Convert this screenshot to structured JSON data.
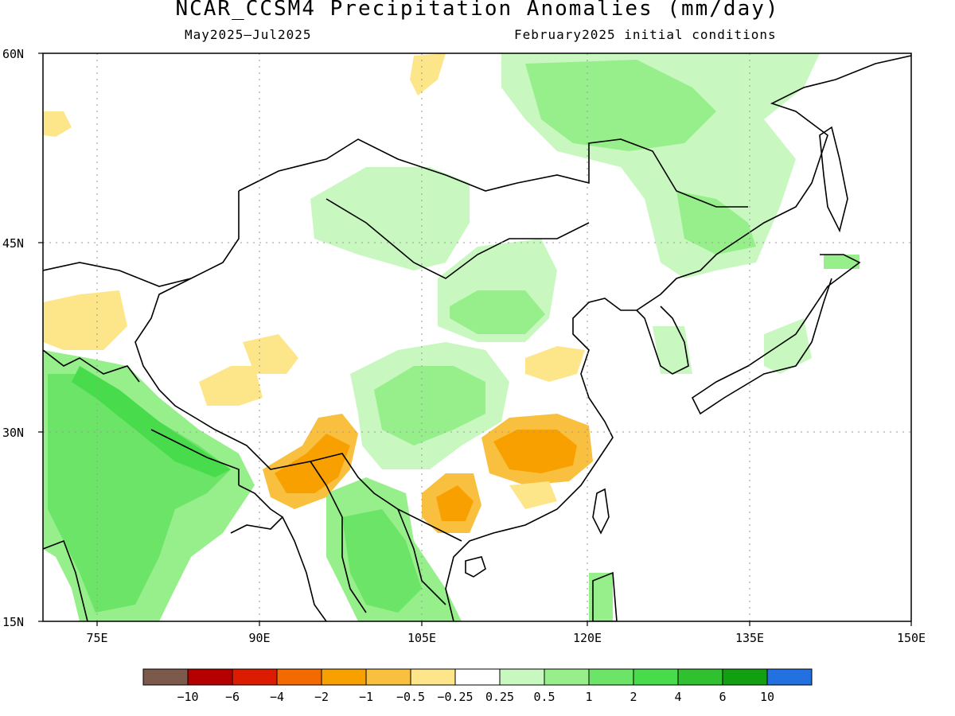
{
  "title": "NCAR_CCSM4 Precipitation Anomalies (mm/day)",
  "period": "May2025–Jul2025",
  "initial_conditions": "February2025 initial conditions",
  "axes": {
    "lat_ticks": [
      "60N",
      "45N",
      "30N",
      "15N"
    ],
    "lon_ticks": [
      "75E",
      "90E",
      "105E",
      "120E",
      "135E",
      "150E"
    ]
  },
  "colorbar": {
    "colors": [
      "#7b5a4c",
      "#b50000",
      "#dc1c00",
      "#f36a00",
      "#f7a000",
      "#f9c040",
      "#fde68a",
      "#ffffff",
      "#c8f8c0",
      "#96ef8a",
      "#6be468",
      "#48dc4c",
      "#30c030",
      "#12a012",
      "#2370e0"
    ],
    "labels": [
      "−10",
      "−6",
      "−4",
      "−2",
      "−1",
      "−0.5",
      "−0.25",
      "0.25",
      "0.5",
      "1",
      "2",
      "4",
      "6",
      "10"
    ]
  }
}
